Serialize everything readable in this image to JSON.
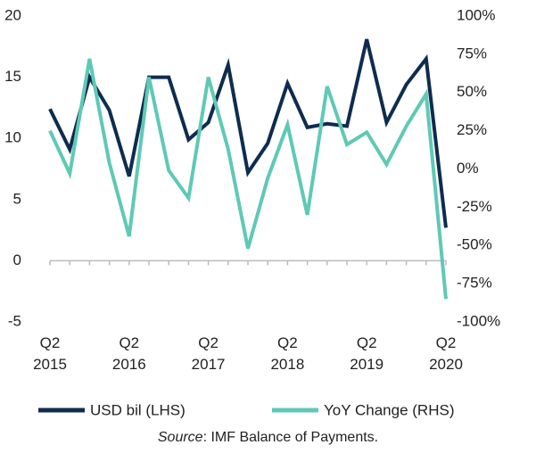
{
  "chart_data": {
    "type": "line",
    "categories": [
      "Q2\n2015",
      null,
      null,
      null,
      "Q2\n2016",
      null,
      null,
      null,
      "Q2\n2017",
      null,
      null,
      null,
      "Q2\n2018",
      null,
      null,
      null,
      "Q2\n2019",
      null,
      null,
      null,
      "Q2\n2020"
    ],
    "series": [
      {
        "name": "USD bil (LHS)",
        "color": "#0e2c4f",
        "axis": "y",
        "values": [
          12.4,
          9.1,
          15.0,
          12.3,
          6.9,
          15.0,
          15.0,
          9.9,
          11.3,
          16.0,
          7.2,
          9.6,
          14.5,
          10.9,
          11.2,
          11.0,
          18.1,
          11.3,
          14.4,
          16.5,
          2.7
        ]
      },
      {
        "name": "YoY Change (RHS)",
        "color": "#5fc9b5",
        "axis": "y2",
        "values": [
          25,
          -3,
          72,
          4,
          -44,
          60,
          -1,
          -19,
          60,
          13,
          -52,
          -6,
          29,
          -30,
          54,
          16,
          24,
          3,
          28,
          49,
          -85
        ]
      }
    ],
    "ylim": [
      -5,
      20
    ],
    "yticks": [
      -5,
      0,
      5,
      10,
      15,
      20
    ],
    "y2lim": [
      -100,
      100
    ],
    "y2ticks": [
      {
        "value": -100,
        "label": "-100%"
      },
      {
        "value": -75,
        "label": "-75%"
      },
      {
        "value": -50,
        "label": "-50%"
      },
      {
        "value": -25,
        "label": "-25%"
      },
      {
        "value": 0,
        "label": "0%"
      },
      {
        "value": 25,
        "label": "25%"
      },
      {
        "value": 50,
        "label": "50%"
      },
      {
        "value": 75,
        "label": "75%"
      },
      {
        "value": 100,
        "label": "100%"
      }
    ],
    "grid": false,
    "legend": "bottom",
    "source_label": "Source",
    "source_text": ": IMF Balance of Payments."
  }
}
